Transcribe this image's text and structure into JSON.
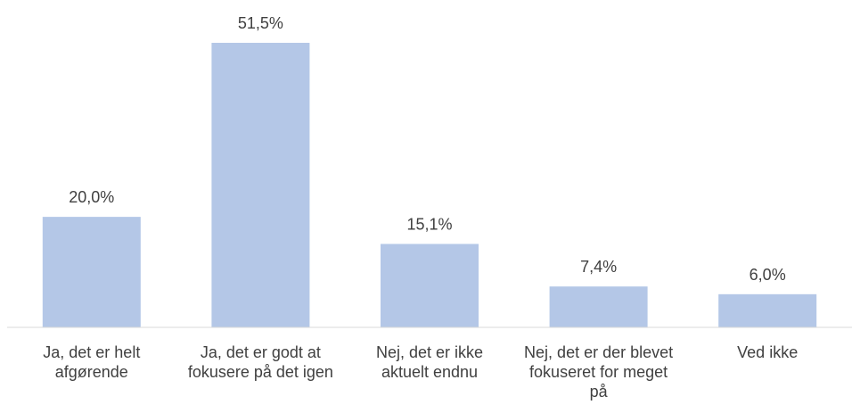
{
  "chart_data": {
    "type": "bar",
    "categories": [
      "Ja, det er helt afgørende",
      "Ja, det er godt at fokusere på det igen",
      "Nej, det er ikke aktuelt endnu",
      "Nej, det er der blevet fokuseret for meget på",
      "Ved ikke"
    ],
    "values": [
      20.0,
      51.5,
      15.1,
      7.4,
      6.0
    ],
    "value_labels": [
      "20,0%",
      "51,5%",
      "15,1%",
      "7,4%",
      "6,0%"
    ],
    "color": "#b4c7e7"
  }
}
